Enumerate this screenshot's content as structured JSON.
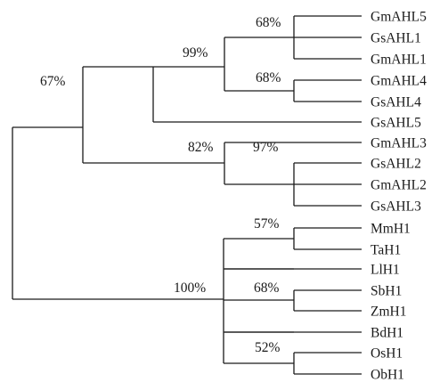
{
  "tree": {
    "taxa": [
      "GmAHL5",
      "GsAHL1",
      "GmAHL1",
      "GmAHL4",
      "GsAHL4",
      "GsAHL5",
      "GmAHL3",
      "GsAHL2",
      "GmAHL2",
      "GsAHL3",
      "MmH1",
      "TaH1",
      "LlH1",
      "SbH1",
      "ZmH1",
      "BdH1",
      "OsH1",
      "ObH1"
    ],
    "support_values": [
      "67%",
      "99%",
      "68%",
      "68%",
      "82%",
      "97%",
      "100%",
      "57%",
      "68%",
      "52%"
    ]
  }
}
